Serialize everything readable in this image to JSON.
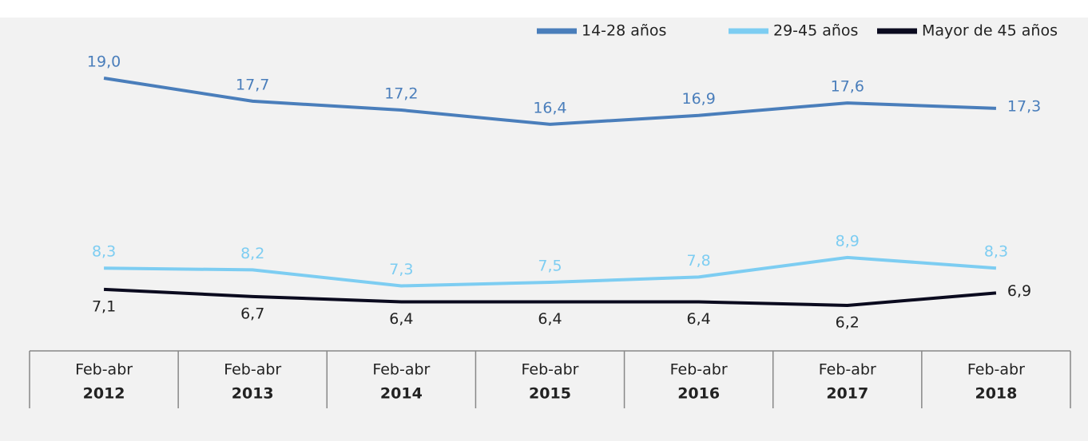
{
  "chart_data": {
    "type": "line",
    "categories": [
      [
        "Feb-abr",
        "2012"
      ],
      [
        "Feb-abr",
        "2013"
      ],
      [
        "Feb-abr",
        "2014"
      ],
      [
        "Feb-abr",
        "2015"
      ],
      [
        "Feb-abr",
        "2016"
      ],
      [
        "Feb-abr",
        "2017"
      ],
      [
        "Feb-abr",
        "2018"
      ]
    ],
    "series": [
      {
        "name": "14-28 años",
        "color": "#4a7ebb",
        "values": [
          19.0,
          17.7,
          17.2,
          16.4,
          16.9,
          17.6,
          17.3
        ],
        "value_labels": [
          "19,0",
          "17,7",
          "17,2",
          "16,4",
          "16,9",
          "17,6",
          "17,3"
        ]
      },
      {
        "name": "29-45 años",
        "color": "#7dcdf2",
        "values": [
          8.3,
          8.2,
          7.3,
          7.5,
          7.8,
          8.9,
          8.3
        ],
        "value_labels": [
          "8,3",
          "8,2",
          "7,3",
          "7,5",
          "7,8",
          "8,9",
          "8,3"
        ]
      },
      {
        "name": "Mayor de 45 años",
        "color": "#0b0b1f",
        "values": [
          7.1,
          6.7,
          6.4,
          6.4,
          6.4,
          6.2,
          6.9
        ],
        "value_labels": [
          "7,1",
          "6,7",
          "6,4",
          "6,4",
          "6,4",
          "6,2",
          "6,9"
        ]
      }
    ],
    "ylim": [
      0,
      20
    ],
    "legend": "top-right"
  }
}
